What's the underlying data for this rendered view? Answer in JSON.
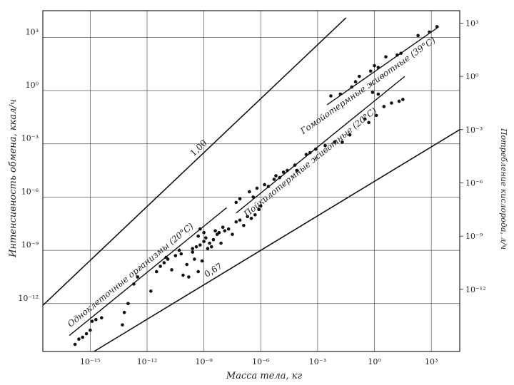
{
  "chart_data": {
    "type": "scatter",
    "xlabel": "Масса тела, кг",
    "ylabel": "Интенсивность обмена, ккал/ч",
    "y2label": "Потребление кислорода, л/ч",
    "x_scale": "log",
    "y_scale": "log",
    "xlim_log10": [
      -17.5,
      4.5
    ],
    "ylim_log10": [
      -14.7,
      4.5
    ],
    "y2lim_log10": [
      -15.5,
      3.7
    ],
    "x_ticks": [
      {
        "exp": -15,
        "label": "10⁻¹⁵"
      },
      {
        "exp": -12,
        "label": "10⁻¹²"
      },
      {
        "exp": -9,
        "label": "10⁻⁹"
      },
      {
        "exp": -6,
        "label": "10⁻⁶"
      },
      {
        "exp": -3,
        "label": "10⁻³"
      },
      {
        "exp": 0,
        "label": "10⁰"
      },
      {
        "exp": 3,
        "label": "10³"
      }
    ],
    "y_ticks": [
      {
        "exp": 3,
        "label": "10³"
      },
      {
        "exp": 0,
        "label": "10⁰"
      },
      {
        "exp": -3,
        "label": "10⁻³"
      },
      {
        "exp": -6,
        "label": "10⁻⁶"
      },
      {
        "exp": -9,
        "label": "10⁻⁹"
      },
      {
        "exp": -12,
        "label": "10⁻¹²"
      }
    ],
    "y2_ticks": [
      {
        "exp": 3,
        "label": "10³"
      },
      {
        "exp": 0,
        "label": "10⁰"
      },
      {
        "exp": -3,
        "label": "10⁻³"
      },
      {
        "exp": -6,
        "label": "10⁻⁶"
      },
      {
        "exp": -9,
        "label": "10⁻⁹"
      },
      {
        "exp": -12,
        "label": "10⁻¹²"
      }
    ],
    "grid": true,
    "reference_lines": [
      {
        "label": "1,00",
        "slope": 1.0,
        "points_log10": [
          [
            -17.5,
            -12.1
          ],
          [
            -1.5,
            4.1
          ]
        ]
      },
      {
        "label": "0,67",
        "slope": 0.67,
        "points_log10": [
          [
            -14.8,
            -14.7
          ],
          [
            4.5,
            -2.2
          ]
        ]
      }
    ],
    "series": [
      {
        "name": "Гомойотермные животные (39°C)",
        "fit_log10": [
          [
            -2.5,
            -0.8
          ],
          [
            3.4,
            3.6
          ]
        ],
        "points_log10": [
          [
            -2.3,
            -0.3
          ],
          [
            -1.8,
            -0.2
          ],
          [
            -1.2,
            0.2
          ],
          [
            -1.0,
            0.5
          ],
          [
            -0.8,
            0.8
          ],
          [
            -0.2,
            1.1
          ],
          [
            0.0,
            1.4
          ],
          [
            0.2,
            1.3
          ],
          [
            0.6,
            1.9
          ],
          [
            1.2,
            2.0
          ],
          [
            1.4,
            2.1
          ],
          [
            2.3,
            3.1
          ],
          [
            2.9,
            3.3
          ],
          [
            3.3,
            3.6
          ]
        ]
      },
      {
        "name": "Пойкилотермные животные (20°C)",
        "fit_log10": [
          [
            -7.3,
            -6.9
          ],
          [
            1.6,
            0.8
          ]
        ],
        "points_log10": [
          [
            -7.3,
            -6.3
          ],
          [
            -7.1,
            -6.1
          ],
          [
            -6.6,
            -5.7
          ],
          [
            -6.4,
            -6.0
          ],
          [
            -6.2,
            -5.5
          ],
          [
            -5.8,
            -5.3
          ],
          [
            -5.6,
            -5.4
          ],
          [
            -5.3,
            -5.0
          ],
          [
            -5.2,
            -4.8
          ],
          [
            -5.0,
            -4.9
          ],
          [
            -4.8,
            -4.6
          ],
          [
            -4.6,
            -4.5
          ],
          [
            -4.2,
            -4.2
          ],
          [
            -4.1,
            -4.5
          ],
          [
            -3.6,
            -3.6
          ],
          [
            -3.4,
            -3.5
          ],
          [
            -3.1,
            -3.3
          ],
          [
            -2.6,
            -3.1
          ],
          [
            -2.1,
            -2.9
          ],
          [
            -1.7,
            -2.9
          ],
          [
            -1.3,
            -2.5
          ],
          [
            -0.5,
            -1.6
          ],
          [
            -0.3,
            -1.8
          ],
          [
            0.1,
            -1.4
          ],
          [
            0.5,
            -0.9
          ],
          [
            0.9,
            -0.7
          ],
          [
            1.3,
            -0.6
          ],
          [
            1.5,
            -0.5
          ],
          [
            -0.1,
            -0.1
          ],
          [
            0.2,
            -0.2
          ]
        ]
      },
      {
        "name": "Одноклеточные организмы (20°C)",
        "fit_log10": [
          [
            -16.1,
            -13.8
          ],
          [
            -7.8,
            -6.6
          ]
        ],
        "points_log10": [
          [
            -15.8,
            -14.3
          ],
          [
            -15.6,
            -14.0
          ],
          [
            -15.4,
            -13.9
          ],
          [
            -15.2,
            -13.7
          ],
          [
            -15.0,
            -13.5
          ],
          [
            -14.9,
            -13.0
          ],
          [
            -14.7,
            -12.9
          ],
          [
            -14.4,
            -12.8
          ],
          [
            -13.3,
            -13.2
          ],
          [
            -13.2,
            -12.5
          ],
          [
            -13.0,
            -12.0
          ],
          [
            -12.7,
            -10.9
          ],
          [
            -12.5,
            -10.5
          ],
          [
            -11.8,
            -11.3
          ],
          [
            -11.5,
            -10.2
          ],
          [
            -11.3,
            -9.9
          ],
          [
            -11.1,
            -9.7
          ],
          [
            -10.9,
            -9.5
          ],
          [
            -10.7,
            -10.1
          ],
          [
            -10.5,
            -9.3
          ],
          [
            -10.2,
            -9.2
          ],
          [
            -10.1,
            -10.4
          ],
          [
            -9.9,
            -9.8
          ],
          [
            -9.8,
            -10.5
          ],
          [
            -9.6,
            -9.1
          ],
          [
            -9.5,
            -9.5
          ],
          [
            -9.4,
            -8.8
          ],
          [
            -9.3,
            -10.2
          ],
          [
            -9.2,
            -8.7
          ],
          [
            -9.1,
            -9.6
          ],
          [
            -9.0,
            -8.5
          ],
          [
            -8.9,
            -8.3
          ],
          [
            -8.8,
            -8.9
          ],
          [
            -8.7,
            -8.6
          ],
          [
            -8.6,
            -8.8
          ],
          [
            -8.5,
            -8.4
          ],
          [
            -8.3,
            -8.1
          ],
          [
            -8.1,
            -8.6
          ],
          [
            -8.0,
            -7.7
          ],
          [
            -7.9,
            -7.9
          ],
          [
            -7.7,
            -7.8
          ],
          [
            -7.5,
            -8.1
          ],
          [
            -7.3,
            -7.4
          ],
          [
            -7.1,
            -7.3
          ],
          [
            -6.9,
            -7.6
          ],
          [
            -6.7,
            -7.1
          ],
          [
            -6.5,
            -7.2
          ],
          [
            -6.3,
            -7.0
          ],
          [
            -6.1,
            -6.7
          ],
          [
            -6.0,
            -6.5
          ],
          [
            -9.3,
            -8.2
          ],
          [
            -9.6,
            -8.9
          ],
          [
            -10.3,
            -9.0
          ],
          [
            -11.0,
            -9.4
          ],
          [
            -8.4,
            -7.9
          ],
          [
            -8.2,
            -8.0
          ],
          [
            -9.0,
            -8.0
          ],
          [
            -9.2,
            -7.8
          ]
        ]
      }
    ]
  }
}
